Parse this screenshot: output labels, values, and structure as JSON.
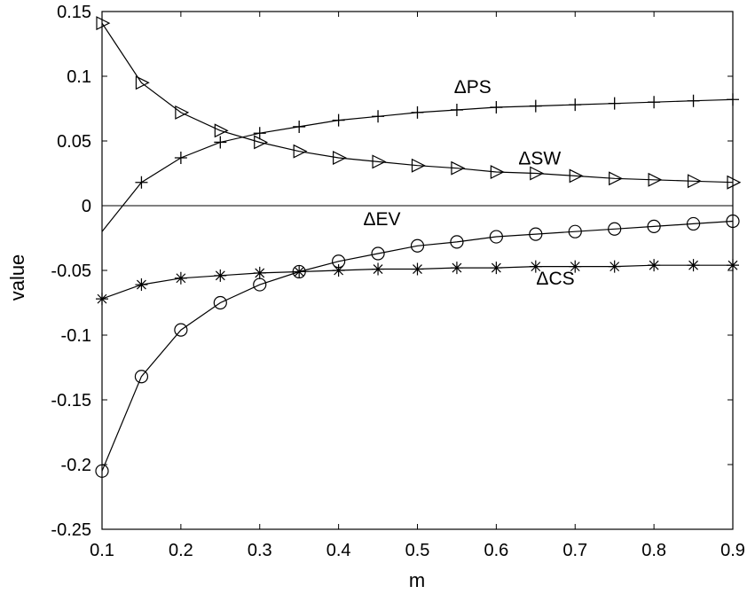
{
  "chart_data": {
    "type": "line",
    "xlabel": "m",
    "ylabel": "value",
    "xlim": [
      0.1,
      0.9
    ],
    "ylim": [
      -0.25,
      0.15
    ],
    "xticks": [
      0.1,
      0.2,
      0.3,
      0.4,
      0.5,
      0.6,
      0.7,
      0.8,
      0.9
    ],
    "xtick_labels": [
      "0.1",
      "0.2",
      "0.3",
      "0.4",
      "0.5",
      "0.6",
      "0.7",
      "0.8",
      "0.9"
    ],
    "yticks": [
      0.15,
      0.1,
      0.05,
      0,
      -0.05,
      -0.1,
      -0.15,
      -0.2,
      -0.25
    ],
    "ytick_labels": [
      "0.15",
      "0.1",
      "0.05",
      "0",
      "-0.05",
      "-0.1",
      "-0.15",
      "-0.2",
      "-0.25"
    ],
    "grid": false,
    "zero_line": true,
    "series": [
      {
        "name": "ΔPS",
        "marker": "plus",
        "x": [
          0.15,
          0.2,
          0.25,
          0.3,
          0.35,
          0.4,
          0.45,
          0.5,
          0.55,
          0.6,
          0.65,
          0.7,
          0.75,
          0.8,
          0.85,
          0.9
        ],
        "y": [
          0.018,
          0.037,
          0.049,
          0.056,
          0.061,
          0.066,
          0.069,
          0.072,
          0.074,
          0.076,
          0.077,
          0.078,
          0.079,
          0.08,
          0.081,
          0.082
        ],
        "line_start": [
          0.1,
          -0.02
        ]
      },
      {
        "name": "ΔSW",
        "marker": "triangle-right",
        "x": [
          0.1,
          0.15,
          0.2,
          0.25,
          0.3,
          0.35,
          0.4,
          0.45,
          0.5,
          0.55,
          0.6,
          0.65,
          0.7,
          0.75,
          0.8,
          0.85,
          0.9
        ],
        "y": [
          0.141,
          0.095,
          0.072,
          0.058,
          0.049,
          0.042,
          0.037,
          0.034,
          0.031,
          0.029,
          0.026,
          0.025,
          0.023,
          0.021,
          0.02,
          0.019,
          0.018
        ]
      },
      {
        "name": "ΔEV",
        "marker": "circle",
        "x": [
          0.1,
          0.15,
          0.2,
          0.25,
          0.3,
          0.35,
          0.4,
          0.45,
          0.5,
          0.55,
          0.6,
          0.65,
          0.7,
          0.75,
          0.8,
          0.85,
          0.9
        ],
        "y": [
          -0.205,
          -0.132,
          -0.096,
          -0.075,
          -0.061,
          -0.051,
          -0.043,
          -0.037,
          -0.031,
          -0.028,
          -0.024,
          -0.022,
          -0.02,
          -0.018,
          -0.016,
          -0.014,
          -0.012
        ]
      },
      {
        "name": "ΔCS",
        "marker": "star",
        "x": [
          0.1,
          0.15,
          0.2,
          0.25,
          0.3,
          0.35,
          0.4,
          0.45,
          0.5,
          0.55,
          0.6,
          0.65,
          0.7,
          0.75,
          0.8,
          0.85,
          0.9
        ],
        "y": [
          -0.072,
          -0.061,
          -0.056,
          -0.054,
          -0.052,
          -0.051,
          -0.05,
          -0.049,
          -0.049,
          -0.048,
          -0.048,
          -0.047,
          -0.047,
          -0.047,
          -0.046,
          -0.046,
          -0.046
        ]
      }
    ],
    "annotations": [
      {
        "text": "ΔPS",
        "x": 0.57,
        "y": 0.087
      },
      {
        "text": "ΔSW",
        "x": 0.655,
        "y": 0.032
      },
      {
        "text": "ΔEV",
        "x": 0.455,
        "y": -0.015
      },
      {
        "text": "ΔCS",
        "x": 0.675,
        "y": -0.061
      }
    ]
  }
}
